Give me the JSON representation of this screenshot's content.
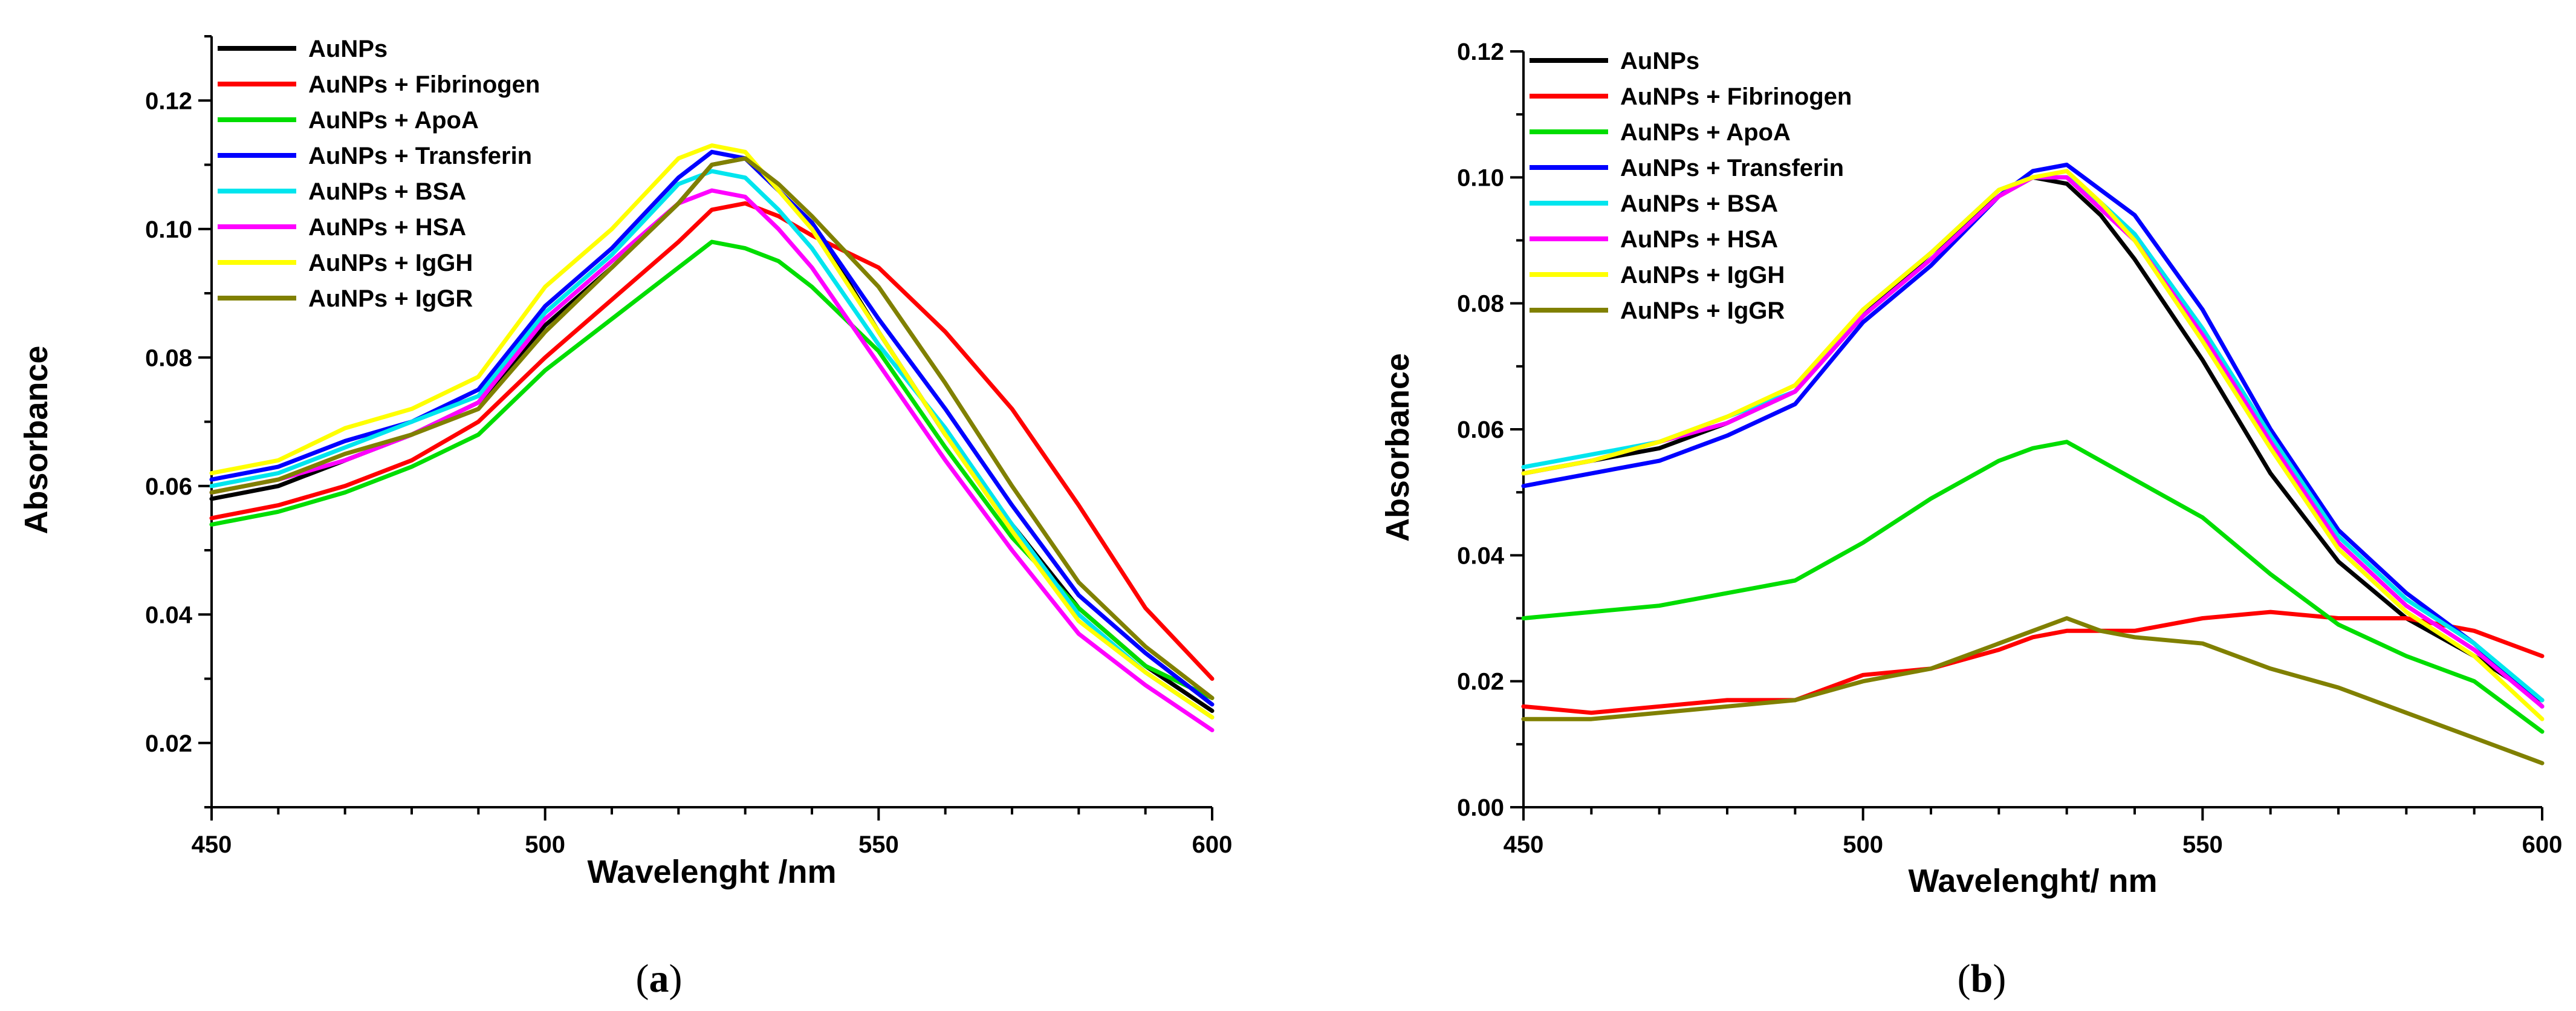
{
  "chart_data": [
    {
      "type": "line",
      "panel": "(a)",
      "caption_open": "(",
      "caption_letter": "a",
      "caption_close": ")",
      "xlabel": "Wavelenght /nm",
      "ylabel": "Absorbance",
      "xlim": [
        450,
        600
      ],
      "ylim": [
        0.01,
        0.13
      ],
      "xticks": [
        450,
        500,
        550,
        600
      ],
      "xtick_labels": [
        "450",
        "500",
        "550",
        "600"
      ],
      "yticks": [
        0.02,
        0.04,
        0.06,
        0.08,
        0.1,
        0.12
      ],
      "ytick_labels": [
        "0.02",
        "0.04",
        "0.06",
        "0.08",
        "0.10",
        "0.12"
      ],
      "legend_position": "top-left",
      "series": [
        {
          "name": "AuNPs",
          "color": "#000000",
          "x": [
            450,
            460,
            470,
            480,
            490,
            500,
            510,
            520,
            525,
            530,
            535,
            540,
            550,
            560,
            570,
            580,
            590,
            600
          ],
          "y": [
            0.058,
            0.06,
            0.064,
            0.068,
            0.073,
            0.085,
            0.094,
            0.104,
            0.11,
            0.111,
            0.106,
            0.101,
            0.084,
            0.068,
            0.054,
            0.041,
            0.032,
            0.025
          ]
        },
        {
          "name": "AuNPs + Fibrinogen",
          "color": "#ff0000",
          "x": [
            450,
            460,
            470,
            480,
            490,
            500,
            510,
            520,
            525,
            530,
            535,
            540,
            550,
            560,
            570,
            580,
            590,
            600
          ],
          "y": [
            0.055,
            0.057,
            0.06,
            0.064,
            0.07,
            0.08,
            0.089,
            0.098,
            0.103,
            0.104,
            0.102,
            0.099,
            0.094,
            0.084,
            0.072,
            0.057,
            0.041,
            0.03
          ]
        },
        {
          "name": "AuNPs + ApoA",
          "color": "#00dd00",
          "x": [
            450,
            460,
            470,
            480,
            490,
            500,
            510,
            520,
            525,
            530,
            535,
            540,
            550,
            560,
            570,
            580,
            590,
            600
          ],
          "y": [
            0.054,
            0.056,
            0.059,
            0.063,
            0.068,
            0.078,
            0.086,
            0.094,
            0.098,
            0.097,
            0.095,
            0.091,
            0.081,
            0.066,
            0.052,
            0.041,
            0.032,
            0.027
          ]
        },
        {
          "name": "AuNPs + Transferin",
          "color": "#0000ff",
          "x": [
            450,
            460,
            470,
            480,
            490,
            500,
            510,
            520,
            525,
            530,
            535,
            540,
            550,
            560,
            570,
            580,
            590,
            600
          ],
          "y": [
            0.061,
            0.063,
            0.067,
            0.07,
            0.075,
            0.088,
            0.097,
            0.108,
            0.112,
            0.111,
            0.106,
            0.101,
            0.086,
            0.072,
            0.057,
            0.043,
            0.034,
            0.026
          ]
        },
        {
          "name": "AuNPs + BSA",
          "color": "#00e5ee",
          "x": [
            450,
            460,
            470,
            480,
            490,
            500,
            510,
            520,
            525,
            530,
            535,
            540,
            550,
            560,
            570,
            580,
            590,
            600
          ],
          "y": [
            0.06,
            0.062,
            0.066,
            0.07,
            0.074,
            0.087,
            0.096,
            0.107,
            0.109,
            0.108,
            0.103,
            0.097,
            0.082,
            0.069,
            0.054,
            0.04,
            0.031,
            0.024
          ]
        },
        {
          "name": "AuNPs + HSA",
          "color": "#ff00ff",
          "x": [
            450,
            460,
            470,
            480,
            490,
            500,
            510,
            520,
            525,
            530,
            535,
            540,
            550,
            560,
            570,
            580,
            590,
            600
          ],
          "y": [
            0.059,
            0.061,
            0.064,
            0.068,
            0.073,
            0.086,
            0.095,
            0.104,
            0.106,
            0.105,
            0.1,
            0.094,
            0.079,
            0.064,
            0.05,
            0.037,
            0.029,
            0.022
          ]
        },
        {
          "name": "AuNPs + IgGH",
          "color": "#ffff00",
          "x": [
            450,
            460,
            470,
            480,
            490,
            500,
            510,
            520,
            525,
            530,
            535,
            540,
            550,
            560,
            570,
            580,
            590,
            600
          ],
          "y": [
            0.062,
            0.064,
            0.069,
            0.072,
            0.077,
            0.091,
            0.1,
            0.111,
            0.113,
            0.112,
            0.106,
            0.1,
            0.084,
            0.068,
            0.053,
            0.039,
            0.031,
            0.024
          ]
        },
        {
          "name": "AuNPs + IgGR",
          "color": "#808000",
          "x": [
            450,
            460,
            470,
            480,
            490,
            500,
            510,
            520,
            525,
            530,
            535,
            540,
            550,
            560,
            570,
            580,
            590,
            600
          ],
          "y": [
            0.059,
            0.061,
            0.065,
            0.068,
            0.072,
            0.084,
            0.094,
            0.104,
            0.11,
            0.111,
            0.107,
            0.102,
            0.091,
            0.076,
            0.06,
            0.045,
            0.035,
            0.027
          ]
        }
      ]
    },
    {
      "type": "line",
      "panel": "(b)",
      "caption_open": "(",
      "caption_letter": "b",
      "caption_close": ")",
      "xlabel": "Wavelenght/ nm",
      "ylabel": "Absorbance",
      "xlim": [
        450,
        600
      ],
      "ylim": [
        0.0,
        0.12
      ],
      "xticks": [
        450,
        500,
        550,
        600
      ],
      "xtick_labels": [
        "450",
        "500",
        "550",
        "600"
      ],
      "yticks": [
        0.0,
        0.02,
        0.04,
        0.06,
        0.08,
        0.1,
        0.12
      ],
      "ytick_labels": [
        "0.00",
        "0.02",
        "0.04",
        "0.06",
        "0.08",
        "0.10",
        "0.12"
      ],
      "legend_position": "top-left",
      "series": [
        {
          "name": "AuNPs",
          "color": "#000000",
          "x": [
            450,
            460,
            470,
            480,
            490,
            500,
            510,
            520,
            525,
            530,
            535,
            540,
            550,
            560,
            570,
            580,
            590,
            600
          ],
          "y": [
            0.053,
            0.055,
            0.057,
            0.061,
            0.066,
            0.078,
            0.088,
            0.097,
            0.1,
            0.099,
            0.094,
            0.087,
            0.071,
            0.053,
            0.039,
            0.03,
            0.024,
            0.017
          ]
        },
        {
          "name": "AuNPs + Fibrinogen",
          "color": "#ff0000",
          "x": [
            450,
            460,
            470,
            480,
            490,
            500,
            510,
            520,
            525,
            530,
            535,
            540,
            550,
            560,
            570,
            580,
            590,
            600
          ],
          "y": [
            0.016,
            0.015,
            0.016,
            0.017,
            0.017,
            0.021,
            0.022,
            0.025,
            0.027,
            0.028,
            0.028,
            0.028,
            0.03,
            0.031,
            0.03,
            0.03,
            0.028,
            0.024
          ]
        },
        {
          "name": "AuNPs + ApoA",
          "color": "#00dd00",
          "x": [
            450,
            460,
            470,
            480,
            490,
            500,
            510,
            520,
            525,
            530,
            535,
            540,
            550,
            560,
            570,
            580,
            590,
            600
          ],
          "y": [
            0.03,
            0.031,
            0.032,
            0.034,
            0.036,
            0.042,
            0.049,
            0.055,
            0.057,
            0.058,
            0.055,
            0.052,
            0.046,
            0.037,
            0.029,
            0.024,
            0.02,
            0.012
          ]
        },
        {
          "name": "AuNPs + Transferin",
          "color": "#0000ff",
          "x": [
            450,
            460,
            470,
            480,
            490,
            500,
            510,
            520,
            525,
            530,
            535,
            540,
            550,
            560,
            570,
            580,
            590,
            600
          ],
          "y": [
            0.051,
            0.053,
            0.055,
            0.059,
            0.064,
            0.077,
            0.086,
            0.097,
            0.101,
            0.102,
            0.098,
            0.094,
            0.079,
            0.06,
            0.044,
            0.034,
            0.026,
            0.016
          ]
        },
        {
          "name": "AuNPs + BSA",
          "color": "#00e5ee",
          "x": [
            450,
            460,
            470,
            480,
            490,
            500,
            510,
            520,
            525,
            530,
            535,
            540,
            550,
            560,
            570,
            580,
            590,
            600
          ],
          "y": [
            0.054,
            0.056,
            0.058,
            0.062,
            0.066,
            0.079,
            0.088,
            0.098,
            0.1,
            0.1,
            0.096,
            0.091,
            0.076,
            0.059,
            0.043,
            0.033,
            0.026,
            0.017
          ]
        },
        {
          "name": "AuNPs + HSA",
          "color": "#ff00ff",
          "x": [
            450,
            460,
            470,
            480,
            490,
            500,
            510,
            520,
            525,
            530,
            535,
            540,
            550,
            560,
            570,
            580,
            590,
            600
          ],
          "y": [
            0.053,
            0.055,
            0.058,
            0.061,
            0.066,
            0.078,
            0.087,
            0.097,
            0.1,
            0.1,
            0.095,
            0.09,
            0.075,
            0.058,
            0.042,
            0.032,
            0.025,
            0.016
          ]
        },
        {
          "name": "AuNPs + IgGH",
          "color": "#ffff00",
          "x": [
            450,
            460,
            470,
            480,
            490,
            500,
            510,
            520,
            525,
            530,
            535,
            540,
            550,
            560,
            570,
            580,
            590,
            600
          ],
          "y": [
            0.053,
            0.055,
            0.058,
            0.062,
            0.067,
            0.079,
            0.088,
            0.098,
            0.1,
            0.101,
            0.096,
            0.09,
            0.074,
            0.057,
            0.041,
            0.031,
            0.024,
            0.014
          ]
        },
        {
          "name": "AuNPs + IgGR",
          "color": "#808000",
          "x": [
            450,
            460,
            470,
            480,
            490,
            500,
            510,
            520,
            525,
            530,
            535,
            540,
            550,
            560,
            570,
            580,
            590,
            600
          ],
          "y": [
            0.014,
            0.014,
            0.015,
            0.016,
            0.017,
            0.02,
            0.022,
            0.026,
            0.028,
            0.03,
            0.028,
            0.027,
            0.026,
            0.022,
            0.019,
            0.015,
            0.011,
            0.007
          ]
        }
      ]
    }
  ]
}
